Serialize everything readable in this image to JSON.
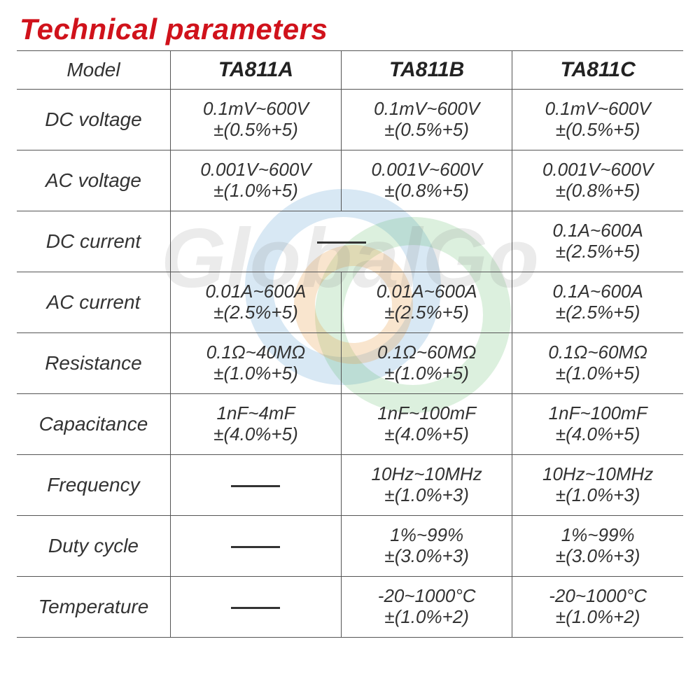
{
  "title": "Technical parameters",
  "watermark_text": "GlobalGo",
  "colors": {
    "title": "#d0121b",
    "border": "#555555",
    "text": "#333333",
    "background": "#ffffff"
  },
  "table": {
    "header_label": "Model",
    "models": [
      "TA811A",
      "TA811B",
      "TA811C"
    ],
    "rows": [
      {
        "param": "DC voltage",
        "cells": [
          {
            "range": "0.1mV~600V",
            "acc": "±(0.5%+5)"
          },
          {
            "range": "0.1mV~600V",
            "acc": "±(0.5%+5)"
          },
          {
            "range": "0.1mV~600V",
            "acc": "±(0.5%+5)"
          }
        ]
      },
      {
        "param": "AC voltage",
        "cells": [
          {
            "range": "0.001V~600V",
            "acc": "±(1.0%+5)"
          },
          {
            "range": "0.001V~600V",
            "acc": "±(0.8%+5)"
          },
          {
            "range": "0.001V~600V",
            "acc": "±(0.8%+5)"
          }
        ]
      },
      {
        "param": "DC current",
        "cells": [
          {
            "dash": true,
            "span": 2
          },
          null,
          {
            "range": "0.1A~600A",
            "acc": "±(2.5%+5)"
          }
        ]
      },
      {
        "param": "AC current",
        "cells": [
          {
            "range": "0.01A~600A",
            "acc": "±(2.5%+5)"
          },
          {
            "range": "0.01A~600A",
            "acc": "±(2.5%+5)"
          },
          {
            "range": "0.1A~600A",
            "acc": "±(2.5%+5)"
          }
        ]
      },
      {
        "param": "Resistance",
        "cells": [
          {
            "range": "0.1Ω~40MΩ",
            "acc": "±(1.0%+5)"
          },
          {
            "range": "0.1Ω~60MΩ",
            "acc": "±(1.0%+5)"
          },
          {
            "range": "0.1Ω~60MΩ",
            "acc": "±(1.0%+5)"
          }
        ]
      },
      {
        "param": "Capacitance",
        "cells": [
          {
            "range": "1nF~4mF",
            "acc": "±(4.0%+5)"
          },
          {
            "range": "1nF~100mF",
            "acc": "±(4.0%+5)"
          },
          {
            "range": "1nF~100mF",
            "acc": "±(4.0%+5)"
          }
        ]
      },
      {
        "param": "Frequency",
        "cells": [
          {
            "dash": true
          },
          {
            "range": "10Hz~10MHz",
            "acc": "±(1.0%+3)"
          },
          {
            "range": "10Hz~10MHz",
            "acc": "±(1.0%+3)"
          }
        ]
      },
      {
        "param": "Duty cycle",
        "cells": [
          {
            "dash": true
          },
          {
            "range": "1%~99%",
            "acc": "±(3.0%+3)"
          },
          {
            "range": "1%~99%",
            "acc": "±(3.0%+3)"
          }
        ]
      },
      {
        "param": "Temperature",
        "cells": [
          {
            "dash": true
          },
          {
            "range": "-20~1000°C",
            "acc": "±(1.0%+2)"
          },
          {
            "range": "-20~1000°C",
            "acc": "±(1.0%+2)"
          }
        ]
      }
    ]
  }
}
